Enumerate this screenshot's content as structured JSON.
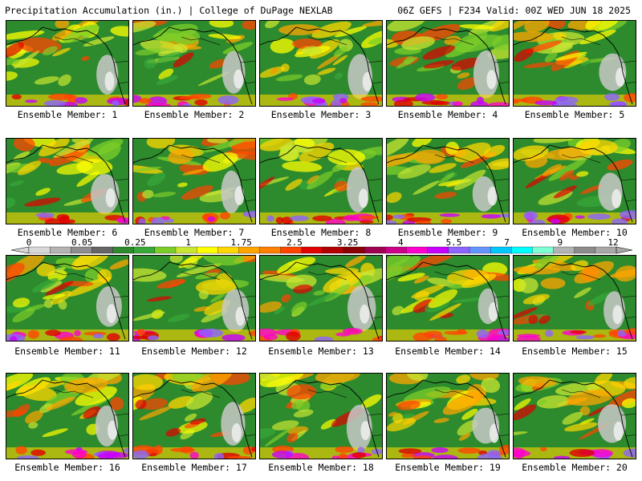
{
  "header": {
    "left": "Precipitation Accumulation (in.) | College of DuPage NEXLAB",
    "right": "06Z GEFS | F234 Valid: 00Z WED JUN 18 2025"
  },
  "members": [
    "Ensemble Member: 1",
    "Ensemble Member: 2",
    "Ensemble Member: 3",
    "Ensemble Member: 4",
    "Ensemble Member: 5",
    "Ensemble Member: 6",
    "Ensemble Member: 7",
    "Ensemble Member: 8",
    "Ensemble Member: 9",
    "Ensemble Member: 10",
    "Ensemble Member: 11",
    "Ensemble Member: 12",
    "Ensemble Member: 13",
    "Ensemble Member: 14",
    "Ensemble Member: 15",
    "Ensemble Member: 16",
    "Ensemble Member: 17",
    "Ensemble Member: 18",
    "Ensemble Member: 19",
    "Ensemble Member: 20"
  ],
  "colorbar": {
    "tick_labels": [
      "0",
      "0.05",
      "0.25",
      "1",
      "1.75",
      "2.5",
      "3.25",
      "4",
      "5.5",
      "7",
      "9",
      "12"
    ],
    "colors": [
      "#d8d8d8",
      "#b4b4b4",
      "#8e8e8e",
      "#666666",
      "#2d8a2d",
      "#38a838",
      "#7ccd2a",
      "#c8e632",
      "#ffff00",
      "#ffd700",
      "#ffa500",
      "#ff7f00",
      "#ff4500",
      "#e00000",
      "#b00000",
      "#8b0000",
      "#a00050",
      "#cc0088",
      "#ff00cc",
      "#c800ff",
      "#8c64ff",
      "#6495ff",
      "#00c8ff",
      "#00ffff",
      "#7fffd4",
      "#b4b4b4",
      "#8c8c8c",
      "#a8a8a8"
    ]
  }
}
